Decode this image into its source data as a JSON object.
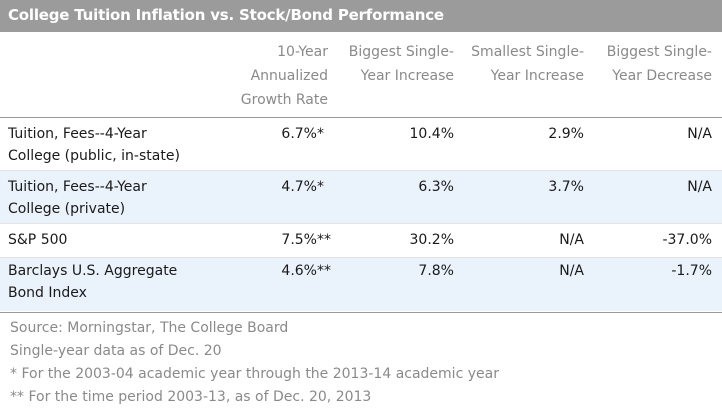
{
  "title": "College Tuition Inflation vs. Stock/Bond Performance",
  "columns": [
    {
      "lines": [
        "10-Year",
        "Annualized",
        "Growth Rate"
      ]
    },
    {
      "lines": [
        "Biggest Single-",
        "Year Increase"
      ]
    },
    {
      "lines": [
        "Smallest Single-",
        "Year Increase"
      ]
    },
    {
      "lines": [
        "Biggest Single-",
        "Year Decrease"
      ]
    }
  ],
  "rows": [
    {
      "label_lines": [
        "Tuition, Fees--4-Year",
        "College (public, in-state)"
      ],
      "values": [
        "6.7%*",
        "10.4%",
        "2.9%",
        "N/A"
      ]
    },
    {
      "label_lines": [
        "Tuition, Fees--4-Year",
        "College (private)"
      ],
      "values": [
        "4.7%*",
        "6.3%",
        "3.7%",
        "N/A"
      ]
    },
    {
      "label_lines": [
        "S&P 500"
      ],
      "values": [
        "7.5%**",
        "30.2%",
        "N/A",
        "-37.0%"
      ]
    },
    {
      "label_lines": [
        "Barclays U.S. Aggregate",
        "Bond Index"
      ],
      "values": [
        "4.6%**",
        "7.8%",
        "N/A",
        "-1.7%"
      ]
    }
  ],
  "footnotes": [
    "Source: Morningstar, The College Board",
    "Single-year data as of Dec. 20",
    "* For the 2003-04 academic year through the 2013-14 academic year",
    "** For the time period 2003-13, as of Dec. 20, 2013"
  ],
  "colors": {
    "title_bar": "#9b9b9b",
    "shaded_row": "#eaf2fb",
    "header_text": "#8a8a8a"
  }
}
